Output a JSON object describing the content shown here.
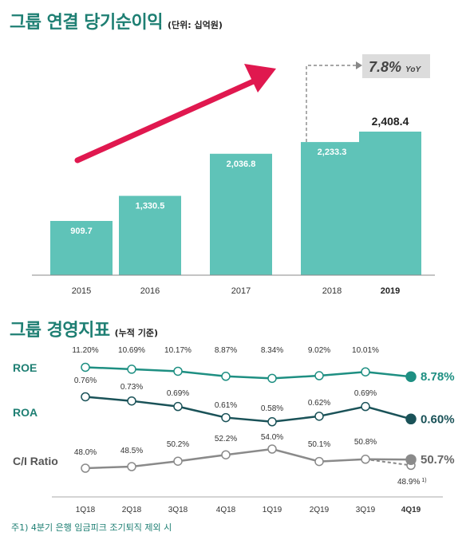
{
  "section1": {
    "title": "그룹 연결 당기순이익",
    "unit": "(단위: 십억원)",
    "yoy_value": "7.8%",
    "yoy_label": "YoY"
  },
  "section2": {
    "title": "그룹 경영지표",
    "unit": "(누적 기준)"
  },
  "footnote": "주1) 4분기 은행 임금피크 조기퇴직 제외 시",
  "colors": {
    "teal": "#5fc3b8",
    "title": "#1e7f73",
    "roe_line": "#1e8f82",
    "roa_line": "#1a5258",
    "ci_line": "#8a8a8a",
    "arrow": "#e0184f"
  },
  "chart_data": [
    {
      "type": "bar",
      "categories": [
        "2015",
        "2016",
        "2017",
        "2018",
        "2019"
      ],
      "values": [
        909.7,
        1330.5,
        2036.8,
        2233.3,
        2408.4
      ],
      "value_labels": [
        "909.7",
        "1,330.5",
        "2,036.8",
        "2,233.3",
        "2,408.4"
      ],
      "highlight_category": "2019",
      "annotation": "7.8% YoY"
    },
    {
      "type": "line",
      "categories": [
        "1Q18",
        "2Q18",
        "3Q18",
        "4Q18",
        "1Q19",
        "2Q19",
        "3Q19",
        "4Q19"
      ],
      "highlight_category": "4Q19",
      "series": [
        {
          "name": "ROE",
          "values": [
            11.2,
            10.69,
            10.17,
            8.87,
            8.34,
            9.02,
            10.01,
            8.78
          ],
          "labels": [
            "11.20%",
            "10.69%",
            "10.17%",
            "8.87%",
            "8.34%",
            "9.02%",
            "10.01%",
            "8.78%"
          ]
        },
        {
          "name": "ROA",
          "values": [
            0.76,
            0.73,
            0.69,
            0.61,
            0.58,
            0.62,
            0.69,
            0.6
          ],
          "labels": [
            "0.76%",
            "0.73%",
            "0.69%",
            "0.61%",
            "0.58%",
            "0.62%",
            "0.69%",
            "0.60%"
          ]
        },
        {
          "name": "C/I Ratio",
          "values": [
            48.0,
            48.5,
            50.2,
            52.2,
            54.0,
            50.1,
            50.8,
            50.7
          ],
          "labels": [
            "48.0%",
            "48.5%",
            "50.2%",
            "52.2%",
            "54.0%",
            "50.1%",
            "50.8%",
            "50.7%"
          ],
          "adjusted_value": 48.9,
          "adjusted_label": "48.9%",
          "adjusted_note": "1)"
        }
      ]
    }
  ]
}
